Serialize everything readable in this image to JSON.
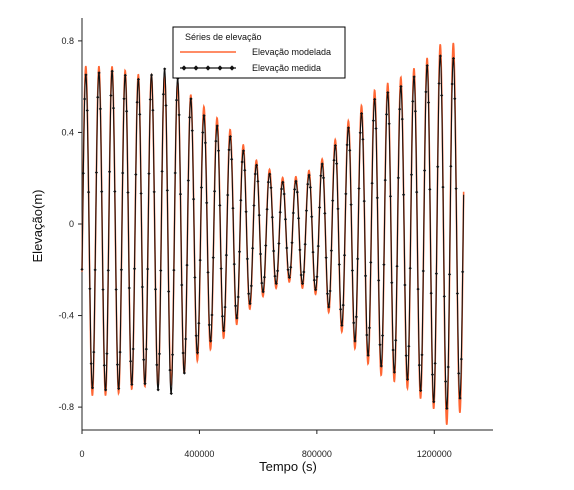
{
  "chart_data": {
    "type": "line",
    "title": "",
    "xlabel": "Tempo (s)",
    "ylabel": "Elevação(m)",
    "xlim": [
      0,
      1400000
    ],
    "ylim": [
      -0.9,
      0.9
    ],
    "x_ticks": [
      0,
      400000,
      800000,
      1200000
    ],
    "x_tick_labels": [
      "0",
      "400000",
      "800000",
      "1200000"
    ],
    "y_ticks": [
      -0.8,
      -0.4,
      0,
      0.4,
      0.8
    ],
    "y_tick_labels": [
      "-0.8",
      "-0.4",
      "0",
      "0.4",
      "0.8"
    ],
    "grid": false,
    "legend": {
      "title": "Séries de elevação",
      "placement": "top-center"
    },
    "tidal_period_s": 44712,
    "series": [
      {
        "name": "Elevação modelada",
        "color": "#ff6633",
        "marker": "none",
        "amplitude_envelope": [
          [
            0,
            0.72
          ],
          [
            100000,
            0.72
          ],
          [
            200000,
            0.68
          ],
          [
            300000,
            0.68
          ],
          [
            400000,
            0.56
          ],
          [
            500000,
            0.45
          ],
          [
            600000,
            0.3
          ],
          [
            700000,
            0.22
          ],
          [
            800000,
            0.28
          ],
          [
            900000,
            0.47
          ],
          [
            1000000,
            0.62
          ],
          [
            1100000,
            0.68
          ],
          [
            1200000,
            0.78
          ],
          [
            1240000,
            0.85
          ],
          [
            1300000,
            0.78
          ]
        ]
      },
      {
        "name": "Elevação medida",
        "color": "#111111",
        "marker": "diamond",
        "amplitude_envelope": [
          [
            0,
            0.68
          ],
          [
            100000,
            0.7
          ],
          [
            200000,
            0.66
          ],
          [
            300000,
            0.72
          ],
          [
            400000,
            0.52
          ],
          [
            500000,
            0.42
          ],
          [
            600000,
            0.28
          ],
          [
            700000,
            0.2
          ],
          [
            800000,
            0.26
          ],
          [
            900000,
            0.44
          ],
          [
            1000000,
            0.58
          ],
          [
            1100000,
            0.64
          ],
          [
            1200000,
            0.75
          ],
          [
            1240000,
            0.78
          ],
          [
            1300000,
            0.72
          ]
        ]
      }
    ]
  }
}
